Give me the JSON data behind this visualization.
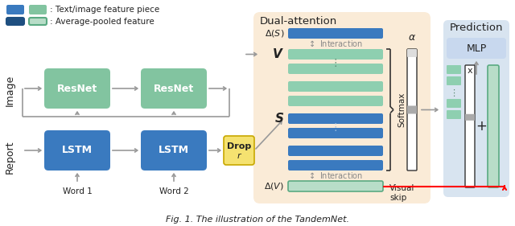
{
  "fig_width": 6.4,
  "fig_height": 2.81,
  "dpi": 100,
  "bg_color": "#ffffff",
  "resnet_color": "#82c4a0",
  "lstm_color": "#3a7abf",
  "drop_color": "#f5e270",
  "mlp_color": "#c8d8ee",
  "dual_attention_bg": "#faebd7",
  "prediction_bg": "#d8e4f0",
  "green_light": "#aad5b8",
  "blue_dark": "#1e4f80",
  "gray_arrow": "#999999",
  "text_white": "#ffffff",
  "text_black": "#222222",
  "caption": "Fig. 1. The illustration of the TandemNet.",
  "legend_piece_text": ": Text/image feature piece",
  "legend_pooled_text": ": Average-pooled feature",
  "label_image": "Image",
  "label_report": "Report",
  "label_resnet1": "ResNet",
  "label_resnet2": "ResNet",
  "label_lstm1": "LSTM",
  "label_lstm2": "LSTM",
  "label_drop": "Drop",
  "label_drop_r": "r",
  "label_interaction": "Interaction",
  "label_softmax": "Softmax",
  "label_visual_skip": "Visual\nskip",
  "label_prediction": "Prediction",
  "label_mlp": "MLP",
  "label_word1": "Word 1",
  "label_word2": "Word 2",
  "label_x": "x",
  "label_plus": "+",
  "dual_attention_title": "Dual-attention",
  "teal_bar": "#8ecfb0",
  "blue_bar": "#3a7abf",
  "avg_green": "#b8ddc8",
  "avg_green_border": "#5aaa82"
}
